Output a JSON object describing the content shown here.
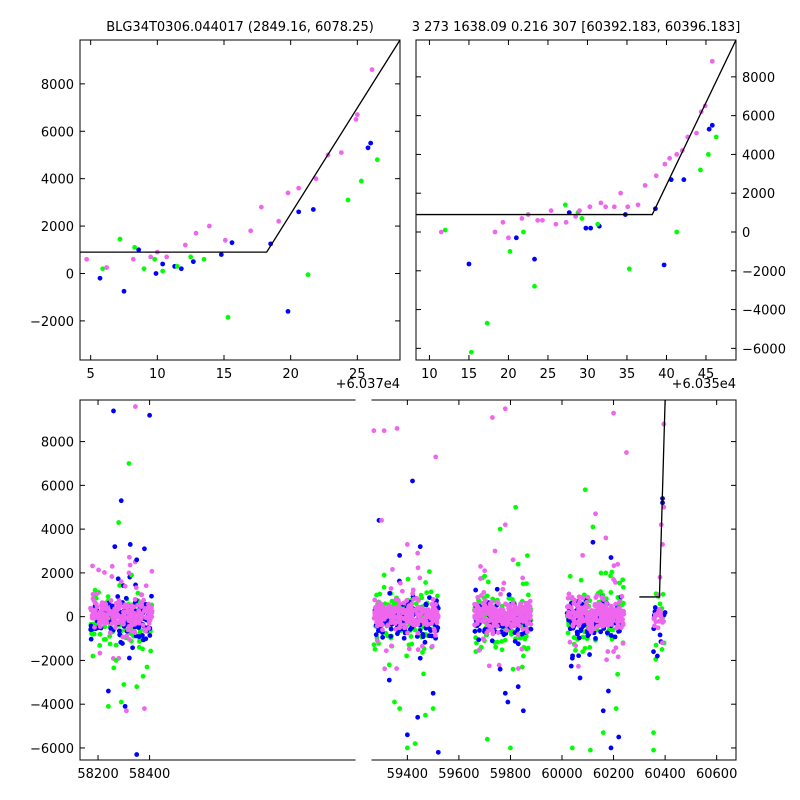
{
  "chart_data": [
    {
      "type": "scatter",
      "title": "BLG34T0306.044017 (2849.16, 6078.25)",
      "xlim": [
        4.2,
        28.2
      ],
      "ylim": [
        -3650,
        9850
      ],
      "x_offset_label": "+6.037e4",
      "xticks": [
        5,
        10,
        15,
        20,
        25
      ],
      "yticks": [
        -2000,
        0,
        2000,
        4000,
        6000,
        8000
      ],
      "ytick_side": "left",
      "grid": false,
      "fit_line": [
        [
          4.2,
          900
        ],
        [
          18.2,
          900
        ],
        [
          28.2,
          9850
        ]
      ],
      "series": [
        {
          "color": "#0000ff",
          "points": [
            [
              5.7,
              -200
            ],
            [
              7.5,
              -750
            ],
            [
              8.6,
              1000
            ],
            [
              9.9,
              0
            ],
            [
              10.4,
              400
            ],
            [
              11.3,
              300
            ],
            [
              11.8,
              200
            ],
            [
              12.7,
              500
            ],
            [
              14.8,
              800
            ],
            [
              15.6,
              1300
            ],
            [
              18.5,
              1250
            ],
            [
              19.8,
              -1600
            ],
            [
              20.6,
              2600
            ],
            [
              21.7,
              2700
            ],
            [
              25.8,
              5300
            ],
            [
              26.0,
              5500
            ]
          ]
        },
        {
          "color": "#00ff00",
          "points": [
            [
              5.9,
              200
            ],
            [
              7.2,
              1450
            ],
            [
              8.3,
              1100
            ],
            [
              9.0,
              200
            ],
            [
              9.8,
              600
            ],
            [
              10.4,
              100
            ],
            [
              11.5,
              300
            ],
            [
              12.5,
              700
            ],
            [
              13.5,
              600
            ],
            [
              15.3,
              -1850
            ],
            [
              21.3,
              -50
            ],
            [
              24.3,
              3100
            ],
            [
              25.3,
              3900
            ],
            [
              26.5,
              4800
            ]
          ]
        },
        {
          "color": "#ee66ee",
          "points": [
            [
              4.7,
              600
            ],
            [
              6.2,
              250
            ],
            [
              8.2,
              600
            ],
            [
              9.5,
              700
            ],
            [
              10.0,
              900
            ],
            [
              10.7,
              700
            ],
            [
              12.1,
              1200
            ],
            [
              12.9,
              1700
            ],
            [
              13.9,
              2000
            ],
            [
              15.1,
              1400
            ],
            [
              17.0,
              1800
            ],
            [
              17.8,
              2800
            ],
            [
              19.1,
              2200
            ],
            [
              19.8,
              3400
            ],
            [
              20.6,
              3600
            ],
            [
              21.9,
              4000
            ],
            [
              22.8,
              5000
            ],
            [
              23.8,
              5100
            ],
            [
              24.9,
              6500
            ],
            [
              25.0,
              6700
            ],
            [
              26.1,
              8600
            ]
          ]
        }
      ]
    },
    {
      "type": "scatter",
      "title": "3 273 1638.09 0.216 307 [60392.183, 60396.183]",
      "xlim": [
        8.3,
        48.8
      ],
      "ylim": [
        -6600,
        9900
      ],
      "x_offset_label": "+6.035e4",
      "xticks": [
        10,
        15,
        20,
        25,
        30,
        35,
        40,
        45
      ],
      "yticks": [
        -6000,
        -4000,
        -2000,
        0,
        2000,
        4000,
        6000,
        8000
      ],
      "ytick_side": "right",
      "grid": false,
      "fit_line": [
        [
          8.3,
          900
        ],
        [
          38.2,
          900
        ],
        [
          48.8,
          9900
        ]
      ],
      "series": [
        {
          "color": "#0000ff",
          "points": [
            [
              15.0,
              -1650
            ],
            [
              21.0,
              -300
            ],
            [
              23.3,
              -1400
            ],
            [
              27.7,
              1000
            ],
            [
              29.8,
              200
            ],
            [
              30.4,
              200
            ],
            [
              31.5,
              300
            ],
            [
              34.8,
              900
            ],
            [
              38.6,
              1200
            ],
            [
              39.7,
              -1700
            ],
            [
              40.6,
              2700
            ],
            [
              42.2,
              2700
            ],
            [
              45.4,
              5300
            ],
            [
              45.8,
              5500
            ]
          ]
        },
        {
          "color": "#00ff00",
          "points": [
            [
              12.0,
              100
            ],
            [
              15.3,
              -6200
            ],
            [
              17.3,
              -4700
            ],
            [
              20.2,
              -1000
            ],
            [
              21.9,
              0
            ],
            [
              23.3,
              -2800
            ],
            [
              27.2,
              1400
            ],
            [
              28.8,
              1000
            ],
            [
              29.3,
              700
            ],
            [
              31.3,
              400
            ],
            [
              35.3,
              -1900
            ],
            [
              41.3,
              0
            ],
            [
              44.3,
              3200
            ],
            [
              45.3,
              4000
            ],
            [
              46.3,
              4900
            ]
          ]
        },
        {
          "color": "#ee66ee",
          "points": [
            [
              11.5,
              0
            ],
            [
              18.3,
              0
            ],
            [
              19.3,
              500
            ],
            [
              20.0,
              -300
            ],
            [
              21.7,
              700
            ],
            [
              22.5,
              900
            ],
            [
              23.7,
              600
            ],
            [
              24.3,
              600
            ],
            [
              25.4,
              1100
            ],
            [
              26.0,
              400
            ],
            [
              27.3,
              500
            ],
            [
              28.5,
              800
            ],
            [
              29.0,
              1100
            ],
            [
              30.3,
              1300
            ],
            [
              31.7,
              1500
            ],
            [
              32.3,
              1300
            ],
            [
              33.4,
              1300
            ],
            [
              34.2,
              2000
            ],
            [
              35.1,
              1300
            ],
            [
              36.4,
              1400
            ],
            [
              37.3,
              2400
            ],
            [
              38.7,
              2900
            ],
            [
              39.8,
              3500
            ],
            [
              40.4,
              3800
            ],
            [
              41.3,
              4000
            ],
            [
              42.0,
              4200
            ],
            [
              42.7,
              4900
            ],
            [
              43.8,
              5100
            ],
            [
              44.4,
              6200
            ],
            [
              44.9,
              6500
            ],
            [
              45.8,
              8800
            ]
          ]
        }
      ]
    },
    {
      "type": "scatter",
      "title": "",
      "xlim": [
        58130,
        60675
      ],
      "ylim": [
        -6550,
        9900
      ],
      "x_offset_label": "",
      "xticks": [
        58200,
        58400,
        59400,
        59600,
        59800,
        60000,
        60200,
        60400,
        60600
      ],
      "xtick_labels": [
        "58200",
        "58400",
        "59400",
        "59600",
        "59800",
        "60000",
        "60200",
        "60400",
        "60600"
      ],
      "yticks": [
        -6000,
        -4000,
        -2000,
        0,
        2000,
        4000,
        6000,
        8000
      ],
      "ytick_side": "left",
      "grid": false,
      "fit_line": [
        [
          60300,
          900
        ],
        [
          60378,
          900
        ],
        [
          60400,
          9900
        ]
      ],
      "seasons": [
        {
          "range": [
            58170,
            58410
          ],
          "core_points": 420
        },
        {
          "range": [
            59270,
            59520
          ],
          "core_points": 520
        },
        {
          "range": [
            59660,
            59880
          ],
          "core_points": 480
        },
        {
          "range": [
            60020,
            60240
          ],
          "core_points": 480
        },
        {
          "range": [
            60355,
            60400
          ],
          "core_points": 40
        }
      ],
      "series": [
        {
          "color": "#0000ff",
          "outliers": [
            [
              58260,
              9400
            ],
            [
              58400,
              9200
            ],
            [
              58290,
              5300
            ],
            [
              58265,
              3200
            ],
            [
              58325,
              3300
            ],
            [
              58350,
              2600
            ],
            [
              58380,
              3100
            ],
            [
              58240,
              -3400
            ],
            [
              58350,
              -6300
            ],
            [
              58305,
              -4100
            ],
            [
              59290,
              4400
            ],
            [
              59370,
              2800
            ],
            [
              59420,
              6200
            ],
            [
              59450,
              3200
            ],
            [
              59440,
              -4600
            ],
            [
              59400,
              -5400
            ],
            [
              59500,
              -3500
            ],
            [
              59520,
              -6200
            ],
            [
              59330,
              -2900
            ],
            [
              59450,
              -1900
            ],
            [
              59780,
              -3500
            ],
            [
              59830,
              -3200
            ],
            [
              59850,
              -4300
            ],
            [
              59760,
              -2400
            ],
            [
              59790,
              -3900
            ],
            [
              60120,
              3400
            ],
            [
              60190,
              2700
            ],
            [
              60160,
              -4300
            ],
            [
              60180,
              -3400
            ],
            [
              60220,
              -5500
            ],
            [
              60190,
              -6000
            ],
            [
              60070,
              -2800
            ],
            [
              60040,
              -1900
            ],
            [
              60390,
              5400
            ],
            [
              60390,
              5200
            ],
            [
              60355,
              -1600
            ],
            [
              60370,
              -1800
            ]
          ]
        },
        {
          "color": "#00ff00",
          "outliers": [
            [
              58320,
              7000
            ],
            [
              58280,
              4300
            ],
            [
              58330,
              1900
            ],
            [
              58240,
              -4100
            ],
            [
              58300,
              -3100
            ],
            [
              58350,
              -3200
            ],
            [
              58270,
              -2000
            ],
            [
              58390,
              -2300
            ],
            [
              58290,
              -3900
            ],
            [
              58360,
              -1400
            ],
            [
              58180,
              -1800
            ],
            [
              59310,
              1900
            ],
            [
              59350,
              -3900
            ],
            [
              59370,
              -4200
            ],
            [
              59400,
              -6000
            ],
            [
              59430,
              -5800
            ],
            [
              59470,
              -4500
            ],
            [
              59500,
              -4200
            ],
            [
              59330,
              -2200
            ],
            [
              59760,
              4000
            ],
            [
              59820,
              5000
            ],
            [
              59830,
              2400
            ],
            [
              59710,
              -5600
            ],
            [
              59800,
              -6000
            ],
            [
              59810,
              -2400
            ],
            [
              59850,
              -1800
            ],
            [
              60090,
              5800
            ],
            [
              60120,
              4100
            ],
            [
              60170,
              2000
            ],
            [
              60110,
              -6100
            ],
            [
              60160,
              -5300
            ],
            [
              60210,
              -4200
            ],
            [
              60040,
              -6000
            ],
            [
              60080,
              -1600
            ],
            [
              60355,
              -5300
            ],
            [
              60355,
              -6100
            ],
            [
              60370,
              -2800
            ],
            [
              60365,
              -1300
            ]
          ]
        },
        {
          "color": "#ee66ee",
          "outliers": [
            [
              58345,
              9600
            ],
            [
              58255,
              2300
            ],
            [
              58320,
              2000
            ],
            [
              58290,
              1600
            ],
            [
              58370,
              1000
            ],
            [
              58310,
              -4300
            ],
            [
              58380,
              -4200
            ],
            [
              59270,
              8500
            ],
            [
              59310,
              8500
            ],
            [
              59360,
              8600
            ],
            [
              59400,
              3300
            ],
            [
              59510,
              7300
            ],
            [
              59300,
              4400
            ],
            [
              59440,
              2900
            ],
            [
              59730,
              9100
            ],
            [
              59780,
              9500
            ],
            [
              59780,
              4200
            ],
            [
              59740,
              3000
            ],
            [
              59810,
              2600
            ],
            [
              59700,
              2100
            ],
            [
              60200,
              9300
            ],
            [
              60250,
              7500
            ],
            [
              60130,
              4700
            ],
            [
              60170,
              3600
            ],
            [
              60080,
              2800
            ],
            [
              60200,
              1700
            ],
            [
              60395,
              8800
            ],
            [
              60395,
              5000
            ],
            [
              60385,
              4200
            ],
            [
              60390,
              3300
            ],
            [
              60380,
              1800
            ],
            [
              60375,
              1000
            ]
          ]
        }
      ]
    }
  ],
  "colors": {
    "blue": "#0000ff",
    "green": "#00ff00",
    "magenta": "#ee66ee",
    "fit_line": "#000000"
  }
}
